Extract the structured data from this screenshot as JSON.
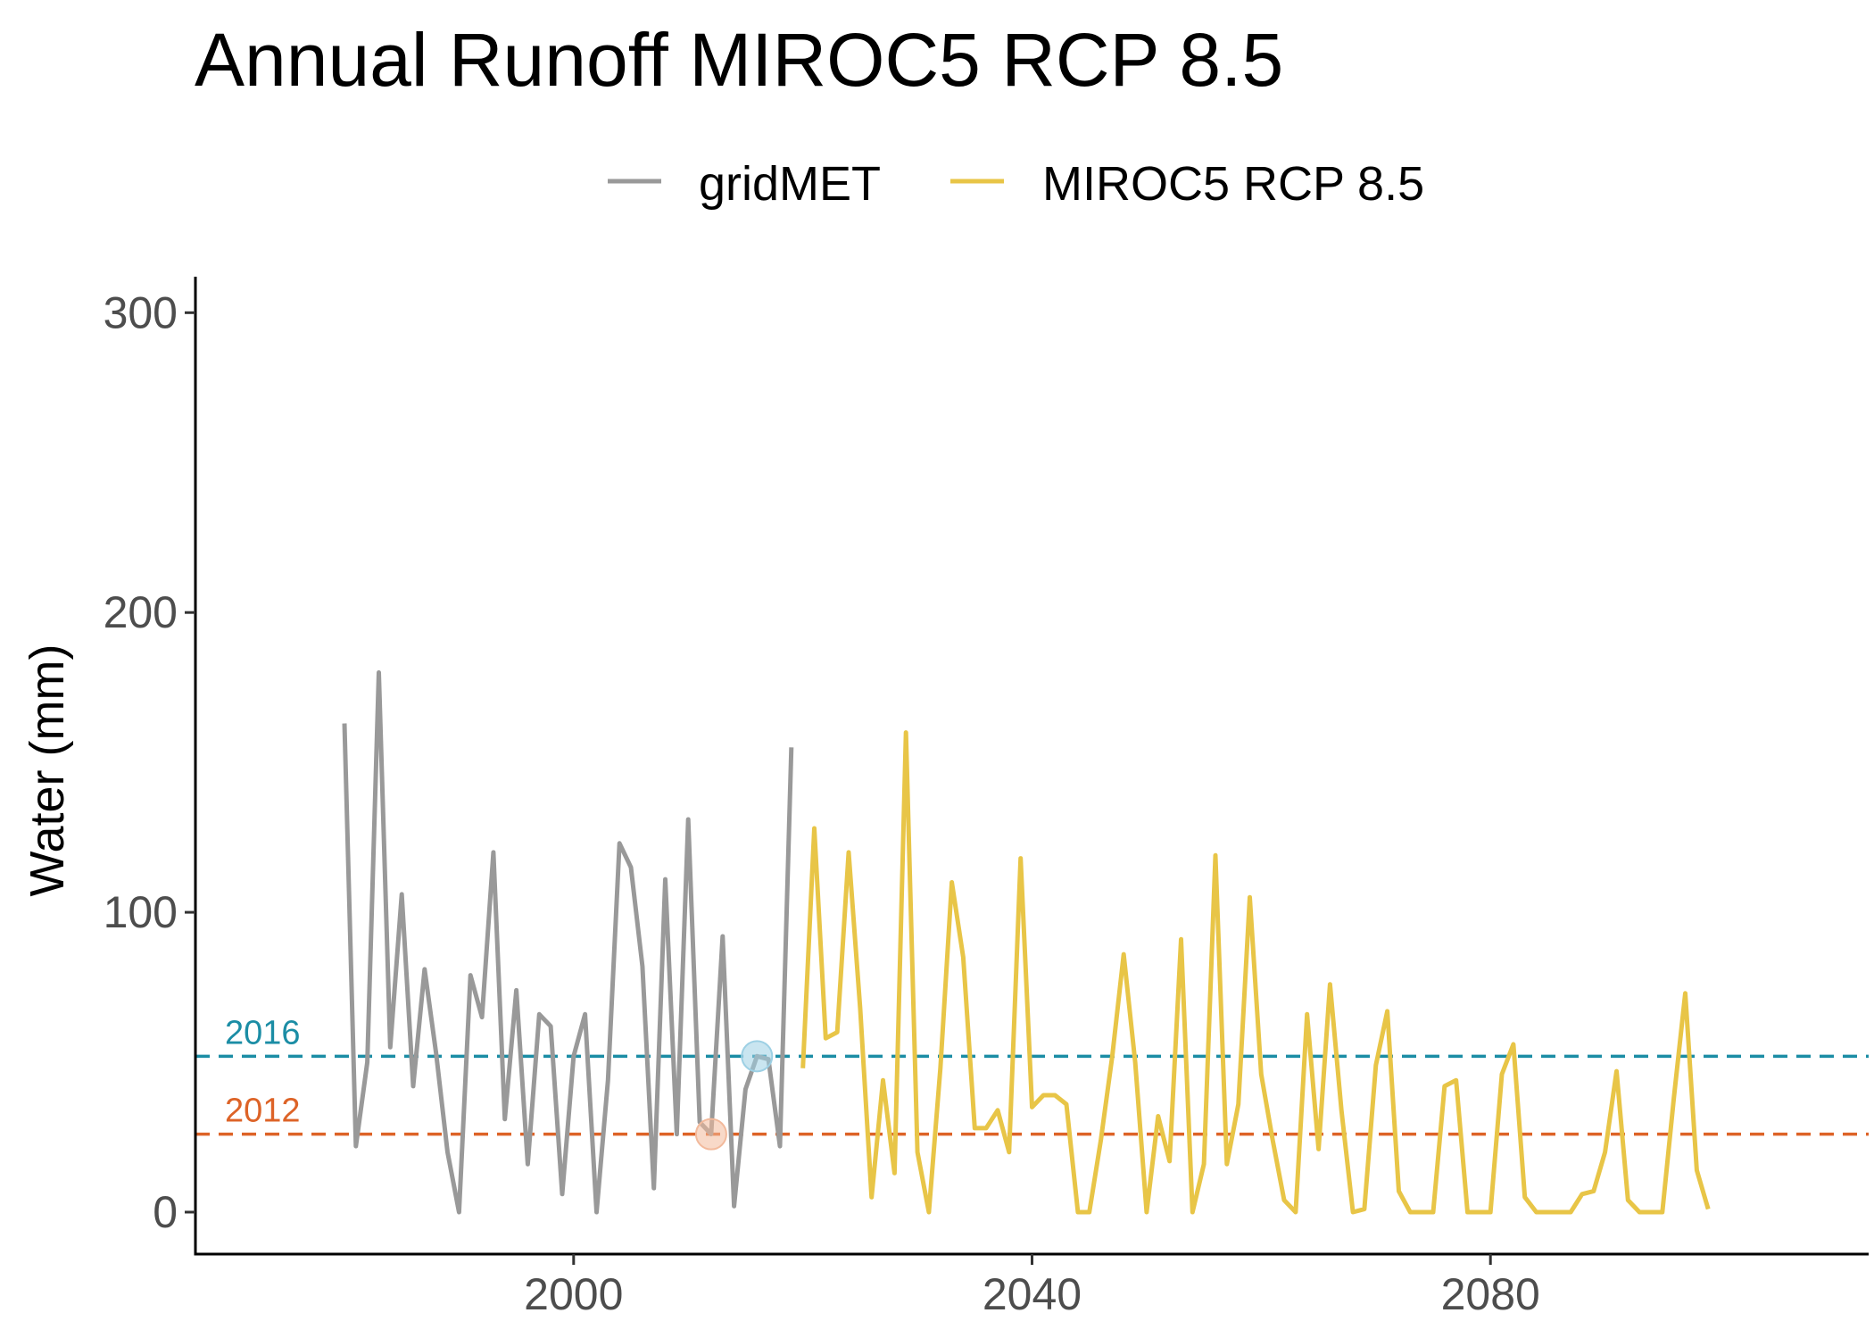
{
  "chart_data": {
    "type": "line",
    "title": "Annual Runoff MIROC5 RCP 8.5",
    "xlabel": "",
    "ylabel": "Water (mm)",
    "xlim": [
      1967,
      2113
    ],
    "ylim": [
      -14,
      312
    ],
    "x_ticks": [
      2000,
      2040,
      2080
    ],
    "y_ticks": [
      0,
      100,
      200,
      300
    ],
    "grid": false,
    "legend_position": "top",
    "series": [
      {
        "name": "gridMET",
        "color": "#999999",
        "x": [
          1980,
          1981,
          1982,
          1983,
          1984,
          1985,
          1986,
          1987,
          1988,
          1989,
          1990,
          1991,
          1992,
          1993,
          1994,
          1995,
          1996,
          1997,
          1998,
          1999,
          2000,
          2001,
          2002,
          2003,
          2004,
          2005,
          2006,
          2007,
          2008,
          2009,
          2010,
          2011,
          2012,
          2013,
          2014,
          2015,
          2016,
          2017,
          2018,
          2019
        ],
        "y": [
          163,
          22,
          50,
          180,
          55,
          106,
          42,
          81,
          53,
          20,
          0,
          79,
          65,
          120,
          31,
          74,
          16,
          66,
          62,
          6,
          52,
          66,
          0,
          44,
          123,
          115,
          82,
          8,
          111,
          26,
          131,
          30,
          26,
          92,
          2,
          41,
          52,
          51,
          22,
          155
        ]
      },
      {
        "name": "MIROC5 RCP 8.5",
        "color": "#E8C547",
        "x": [
          2020,
          2021,
          2022,
          2023,
          2024,
          2025,
          2026,
          2027,
          2028,
          2029,
          2030,
          2031,
          2032,
          2033,
          2034,
          2035,
          2036,
          2037,
          2038,
          2039,
          2040,
          2041,
          2042,
          2043,
          2044,
          2045,
          2046,
          2047,
          2048,
          2049,
          2050,
          2051,
          2052,
          2053,
          2054,
          2055,
          2056,
          2057,
          2058,
          2059,
          2060,
          2061,
          2062,
          2063,
          2064,
          2065,
          2066,
          2067,
          2068,
          2069,
          2070,
          2071,
          2072,
          2073,
          2074,
          2075,
          2076,
          2077,
          2078,
          2079,
          2080,
          2081,
          2082,
          2083,
          2084,
          2085,
          2086,
          2087,
          2088,
          2089,
          2090,
          2091,
          2092,
          2093,
          2094,
          2095,
          2096,
          2097,
          2098,
          2099
        ],
        "y": [
          48,
          128,
          58,
          60,
          120,
          68,
          5,
          44,
          13,
          160,
          20,
          0,
          48,
          110,
          85,
          28,
          28,
          34,
          20,
          118,
          35,
          39,
          39,
          36,
          0,
          0,
          24,
          52,
          86,
          50,
          0,
          32,
          17,
          91,
          0,
          16,
          119,
          16,
          36,
          105,
          46,
          24,
          4,
          0,
          66,
          21,
          76,
          34,
          0,
          1,
          49,
          67,
          7,
          0,
          0,
          0,
          42,
          44,
          0,
          0,
          0,
          46,
          56,
          5,
          0,
          0,
          0,
          0,
          6,
          7,
          20,
          47,
          4,
          0,
          0,
          0,
          38,
          73,
          14,
          1
        ]
      }
    ],
    "reference_lines": [
      {
        "label": "2016",
        "y": 52,
        "color": "#1B8DA5"
      },
      {
        "label": "2012",
        "y": 26,
        "color": "#DD6327"
      }
    ],
    "highlight_points": [
      {
        "year": 2016,
        "y": 52,
        "color": "#9DD0E4"
      },
      {
        "year": 2012,
        "y": 26,
        "color": "#F2B99B"
      }
    ]
  }
}
